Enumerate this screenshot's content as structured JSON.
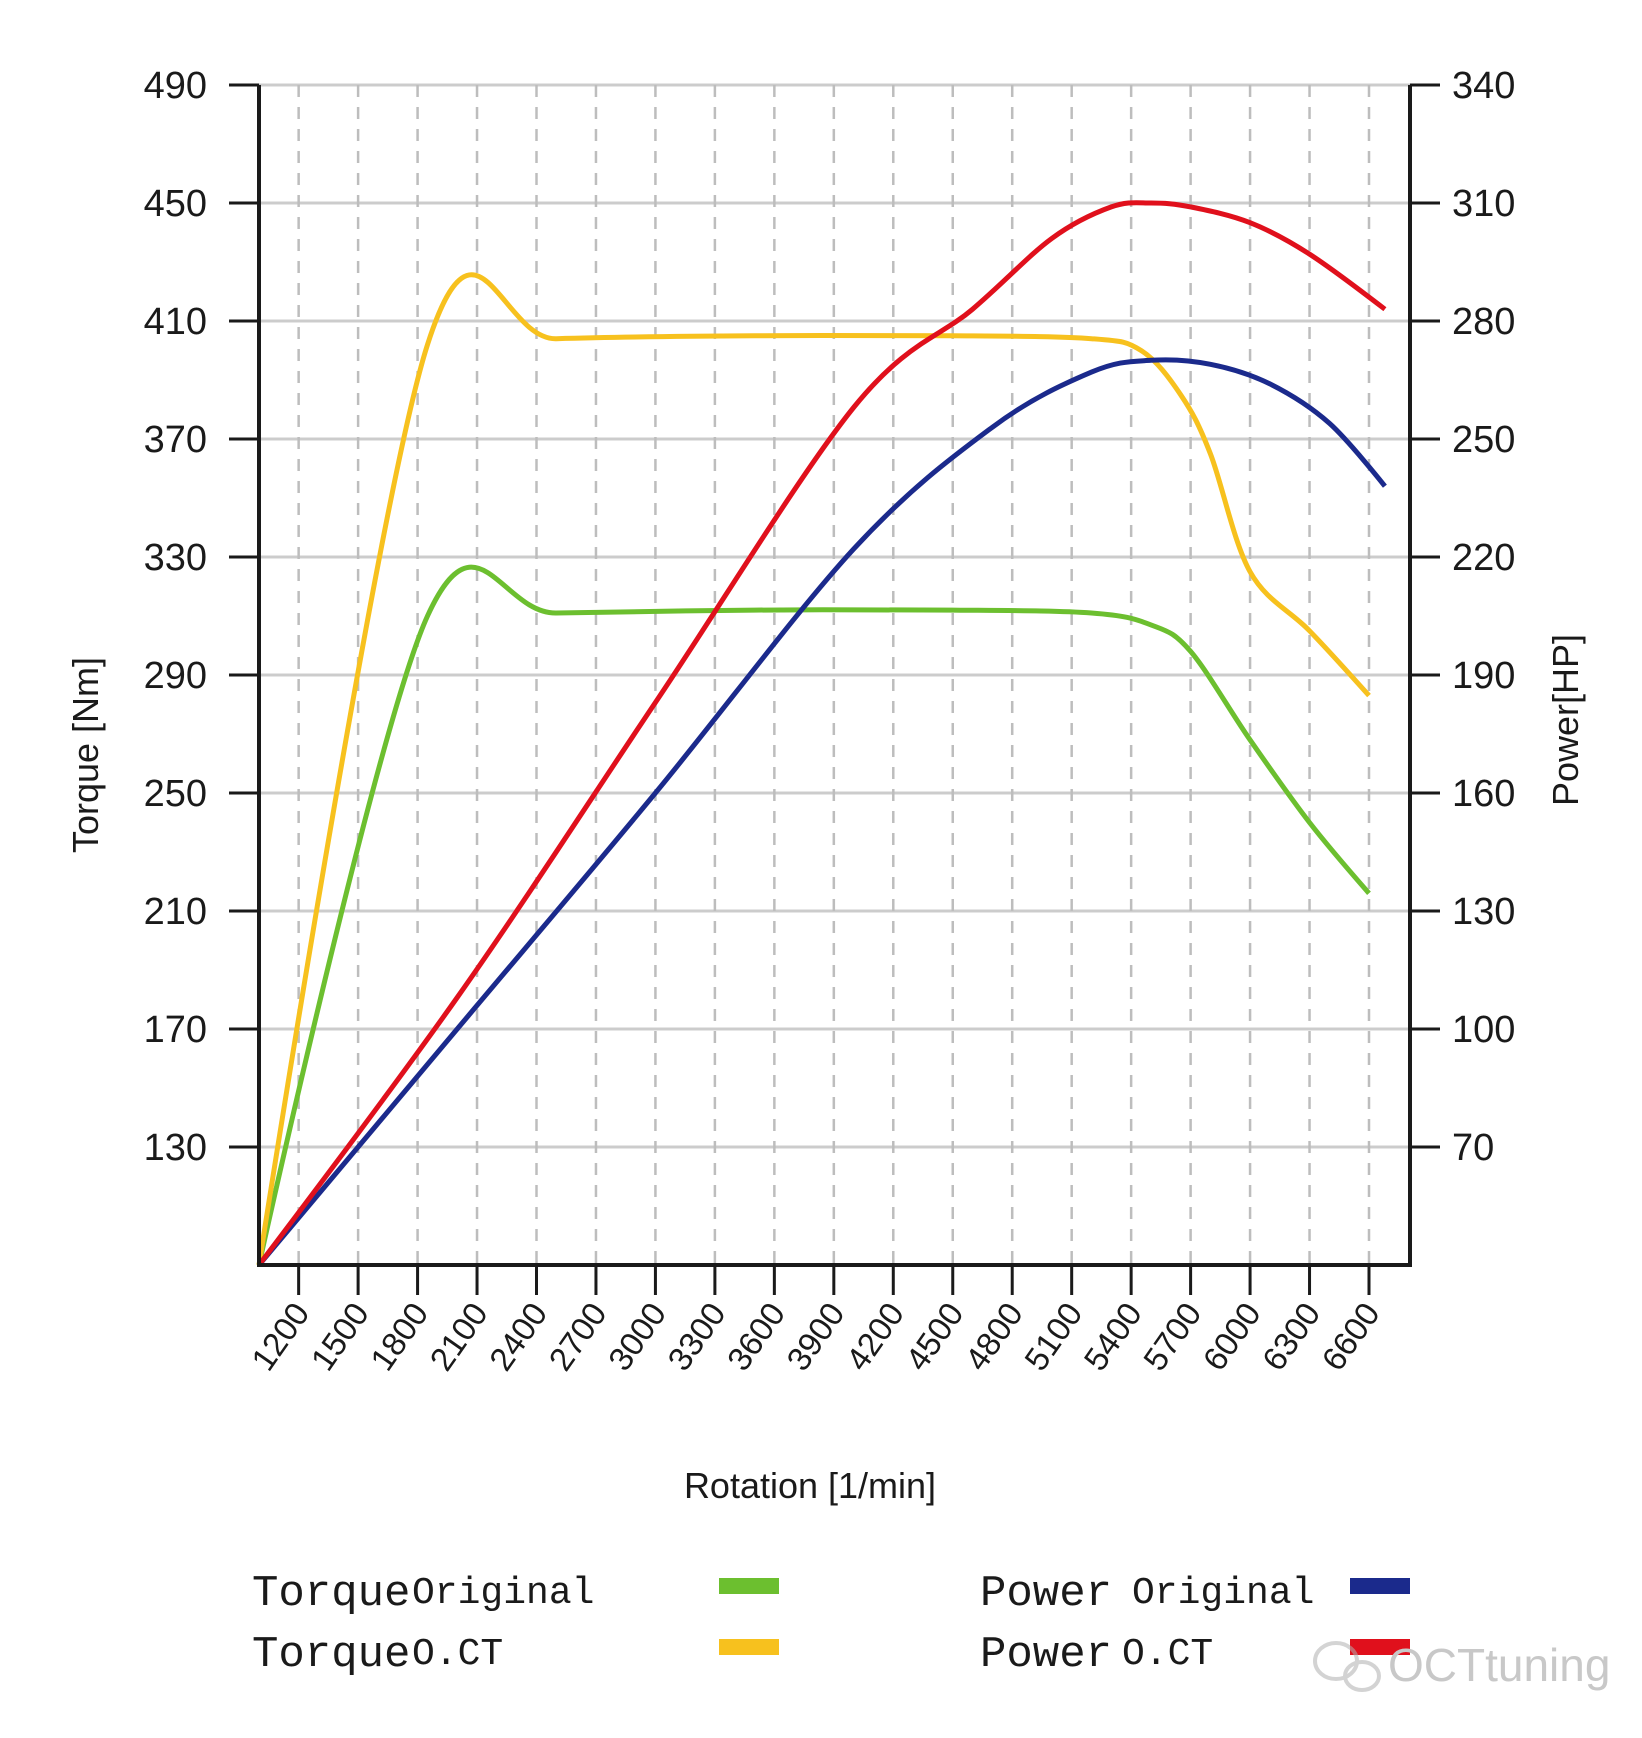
{
  "chart_data": {
    "type": "line",
    "xlabel": "Rotation [1/min]",
    "ylabel_left": "Torque [Nm]",
    "ylabel_right": "Power[HP]",
    "x_ticks": [
      1200,
      1500,
      1800,
      2100,
      2400,
      2700,
      3000,
      3300,
      3600,
      3900,
      4200,
      4500,
      4800,
      5100,
      5400,
      5700,
      6000,
      6300,
      6600
    ],
    "xlim": [
      1000,
      6850
    ],
    "y_left_ticks": [
      490,
      450,
      410,
      370,
      330,
      290,
      250,
      210,
      170,
      130
    ],
    "y_left_lim": [
      90,
      490
    ],
    "y_right_ticks": [
      340,
      310,
      280,
      250,
      220,
      190,
      160,
      130,
      100,
      70
    ],
    "y_right_lim": [
      40,
      340
    ],
    "grid": true,
    "series": [
      {
        "name": "Torque Original",
        "axis": "left",
        "color": "#6cbf2f",
        "x": [
          1000,
          1850,
          2500,
          3500,
          4500,
          5200,
          5500,
          5700,
          6000,
          6300,
          6600
        ],
        "y": [
          90,
          310,
          311,
          312,
          312,
          311,
          307,
          298,
          268,
          240,
          216
        ]
      },
      {
        "name": "Torque O.CT",
        "axis": "left",
        "color": "#f7c11e",
        "x": [
          1000,
          1850,
          2500,
          3500,
          4500,
          5200,
          5450,
          5650,
          5800,
          6000,
          6300,
          6600
        ],
        "y": [
          90,
          402,
          404,
          405,
          405,
          404,
          400,
          385,
          365,
          325,
          305,
          283
        ]
      },
      {
        "name": "Power Original",
        "axis": "right",
        "color": "#1b2a8c",
        "x": [
          1000,
          2000,
          3000,
          4000,
          4700,
          5200,
          5500,
          5800,
          6100,
          6400,
          6680
        ],
        "y": [
          40,
          100,
          160,
          222,
          253,
          267,
          270,
          269,
          264,
          254,
          238
        ]
      },
      {
        "name": "Power O.CT",
        "axis": "right",
        "color": "#e0101c",
        "x": [
          1000,
          2000,
          3000,
          4000,
          4600,
          5000,
          5300,
          5500,
          5700,
          6000,
          6300,
          6680
        ],
        "y": [
          40,
          108,
          183,
          258,
          283,
          301,
          309,
          310,
          309,
          305,
          297,
          283
        ]
      }
    ],
    "legend": [
      {
        "label": "Torque",
        "sub": "Original",
        "color": "#6cbf2f"
      },
      {
        "label": "Torque",
        "sub": "O.CT",
        "color": "#f7c11e"
      },
      {
        "label": "Power",
        "sub": "Original",
        "color": "#1b2a8c"
      },
      {
        "label": "Power",
        "sub": "O.CT",
        "color": "#e0101c"
      }
    ]
  },
  "watermark": "OCTtuning"
}
